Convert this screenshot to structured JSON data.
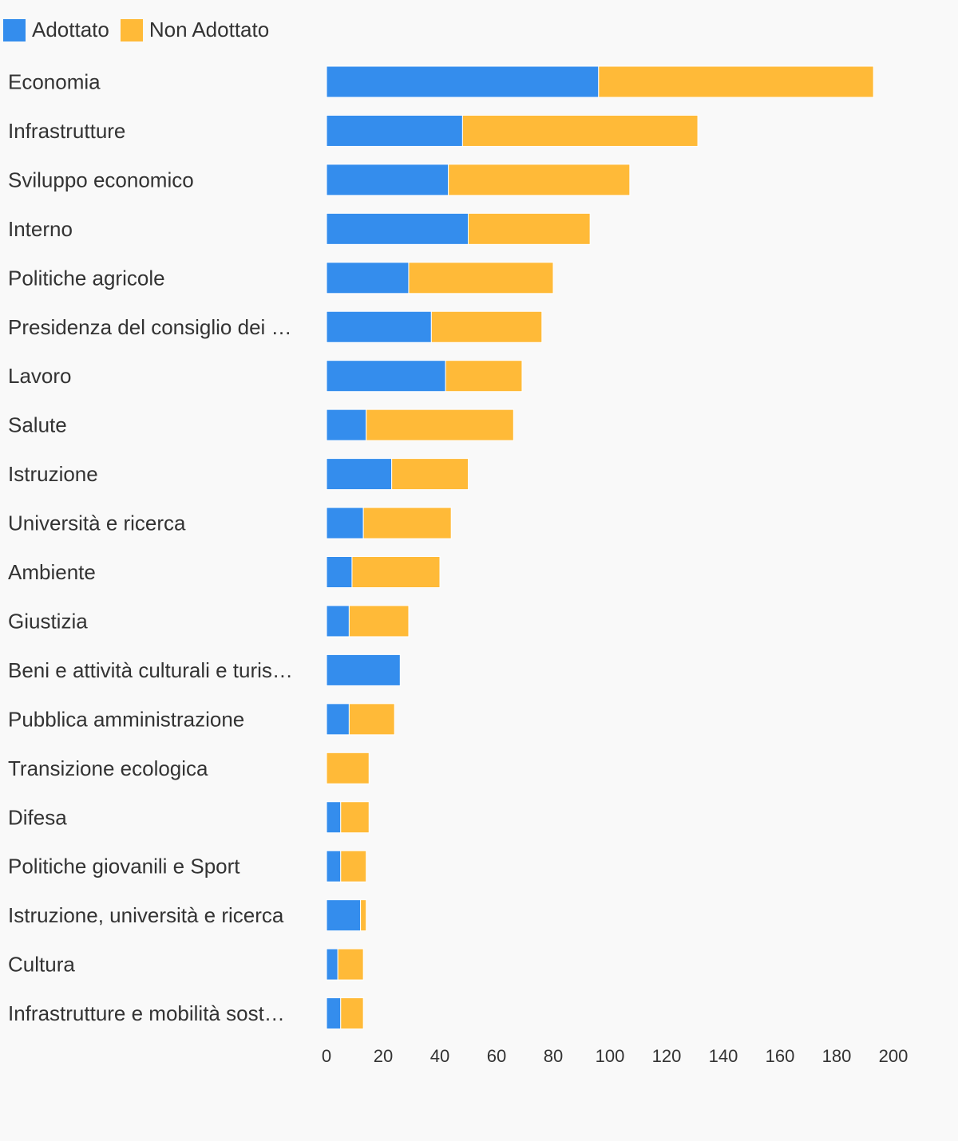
{
  "chart_data": {
    "type": "bar",
    "orientation": "horizontal",
    "stacked": true,
    "title": "",
    "xlabel": "",
    "ylabel": "",
    "xlim": [
      0,
      200
    ],
    "x_ticks": [
      "0",
      "20",
      "40",
      "60",
      "80",
      "100",
      "120",
      "140",
      "160",
      "180",
      "200"
    ],
    "grid": false,
    "legend_position": "top-left",
    "categories": [
      "Economia",
      "Infrastrutture",
      "Sviluppo economico",
      "Interno",
      "Politiche agricole",
      "Presidenza del consiglio dei …",
      "Lavoro",
      "Salute",
      "Istruzione",
      "Università e ricerca",
      "Ambiente",
      "Giustizia",
      "Beni e attività culturali e turis…",
      "Pubblica amministrazione",
      "Transizione ecologica",
      "Difesa",
      "Politiche giovanili e Sport",
      "Istruzione, università e ricerca",
      "Cultura",
      "Infrastrutture e mobilità sost…"
    ],
    "series": [
      {
        "name": "Adottato",
        "color": "#348ded",
        "values": [
          96,
          48,
          43,
          50,
          29,
          37,
          42,
          14,
          23,
          13,
          9,
          8,
          26,
          8,
          0,
          5,
          5,
          12,
          4,
          5
        ]
      },
      {
        "name": "Non Adottato",
        "color": "#ffba38",
        "values": [
          97,
          83,
          64,
          43,
          51,
          39,
          27,
          52,
          27,
          31,
          31,
          21,
          0,
          16,
          15,
          10,
          9,
          2,
          9,
          8
        ]
      }
    ]
  }
}
